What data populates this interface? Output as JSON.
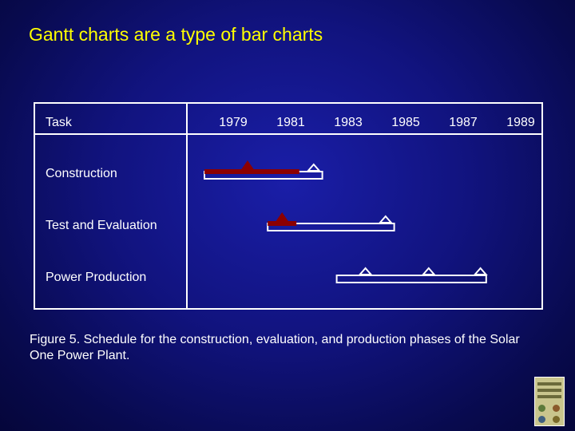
{
  "title": "Gantt charts are a type of bar charts",
  "caption": "Figure 5. Schedule for the construction, evaluation, and production phases of the Solar One Power Plant.",
  "colors": {
    "background": "#11137e",
    "title": "#ffff00",
    "text": "#ffffff",
    "planned_bar": "#ffffff",
    "actual_bar": "#8b0000"
  },
  "chart_data": {
    "type": "gantt",
    "task_header": "Task",
    "year_ticks": [
      "1979",
      "1981",
      "1983",
      "1985",
      "1987",
      "1989"
    ],
    "xlim": [
      1978,
      1989
    ],
    "tasks": [
      {
        "name": "Construction",
        "planned": [
          1978,
          1982.1
        ],
        "actual": [
          1978,
          1981.3
        ],
        "milestones_planned": [
          1981.8
        ],
        "milestones_actual": [
          1979.5
        ]
      },
      {
        "name": "Test and Evaluation",
        "planned": [
          1980.2,
          1984.6
        ],
        "actual": [
          1980.2,
          1981.2
        ],
        "milestones_planned": [
          1984.3
        ],
        "milestones_actual": [
          1980.7
        ]
      },
      {
        "name": "Power Production",
        "planned": [
          1982.6,
          1987.8
        ],
        "actual": null,
        "milestones_planned": [
          1983.6,
          1985.8,
          1987.6
        ],
        "milestones_actual": []
      }
    ]
  }
}
